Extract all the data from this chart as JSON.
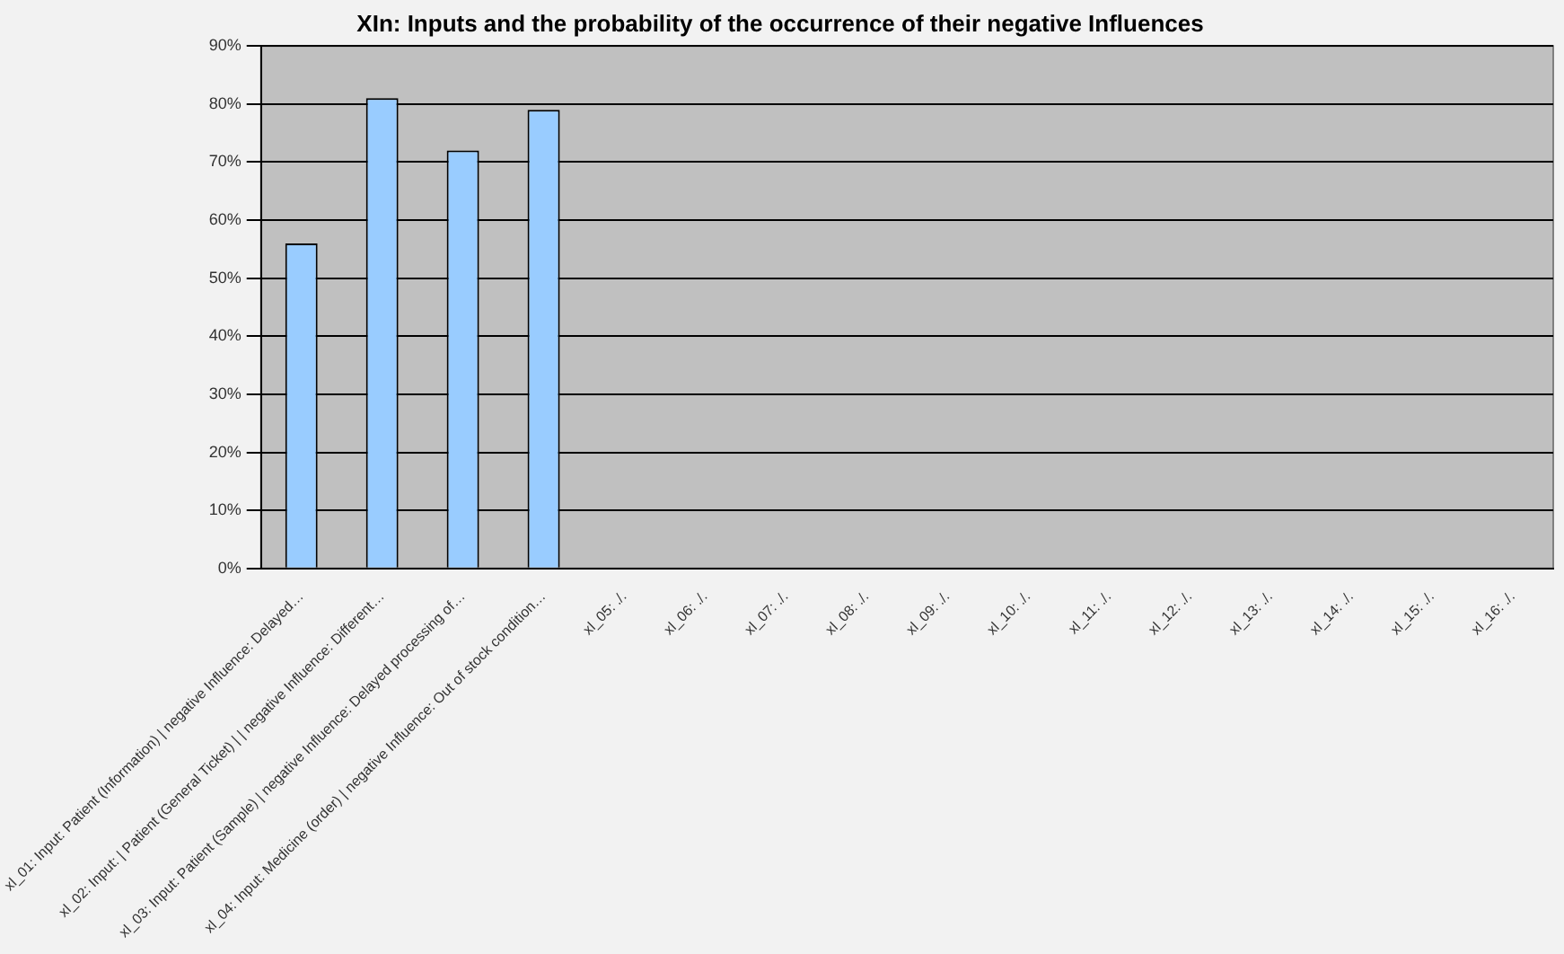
{
  "chart_data": {
    "type": "bar",
    "title": "XIn: Inputs and the probability of the occurrence of their negative Influences",
    "categories": [
      "xl_01: Input: Patient (Information) | negative Influence: Delayed…",
      "xl_02: Input: | Patient (General Ticket) | | negative Influence: Different…",
      "xl_03: Input: Patient (Sample) | negative Influence: Delayed processing of…",
      "xl_04: Input: Medicine (order) | negative Influence: Out of stock condition…",
      "xl_05: ./.",
      "xl_06: ./.",
      "xl_07: ./.",
      "xl_08: ./.",
      "xl_09: ./.",
      "xl_10: ./.",
      "xl_11: ./.",
      "xl_12: ./.",
      "xl_13: ./.",
      "xl_14: ./.",
      "xl_15: ./.",
      "xl_16: ./."
    ],
    "values": [
      56,
      81,
      72,
      79,
      null,
      null,
      null,
      null,
      null,
      null,
      null,
      null,
      null,
      null,
      null,
      null
    ],
    "color": "#99ccff",
    "ylim": [
      0,
      90
    ],
    "yticks": [
      {
        "value": 0,
        "label": "0%"
      },
      {
        "value": 10,
        "label": "10%"
      },
      {
        "value": 20,
        "label": "20%"
      },
      {
        "value": 30,
        "label": "30%"
      },
      {
        "value": 40,
        "label": "40%"
      },
      {
        "value": 50,
        "label": "50%"
      },
      {
        "value": 60,
        "label": "60%"
      },
      {
        "value": 70,
        "label": "70%"
      },
      {
        "value": 80,
        "label": "80%"
      },
      {
        "value": 90,
        "label": "90%"
      }
    ],
    "grid": "y",
    "legend": false
  }
}
